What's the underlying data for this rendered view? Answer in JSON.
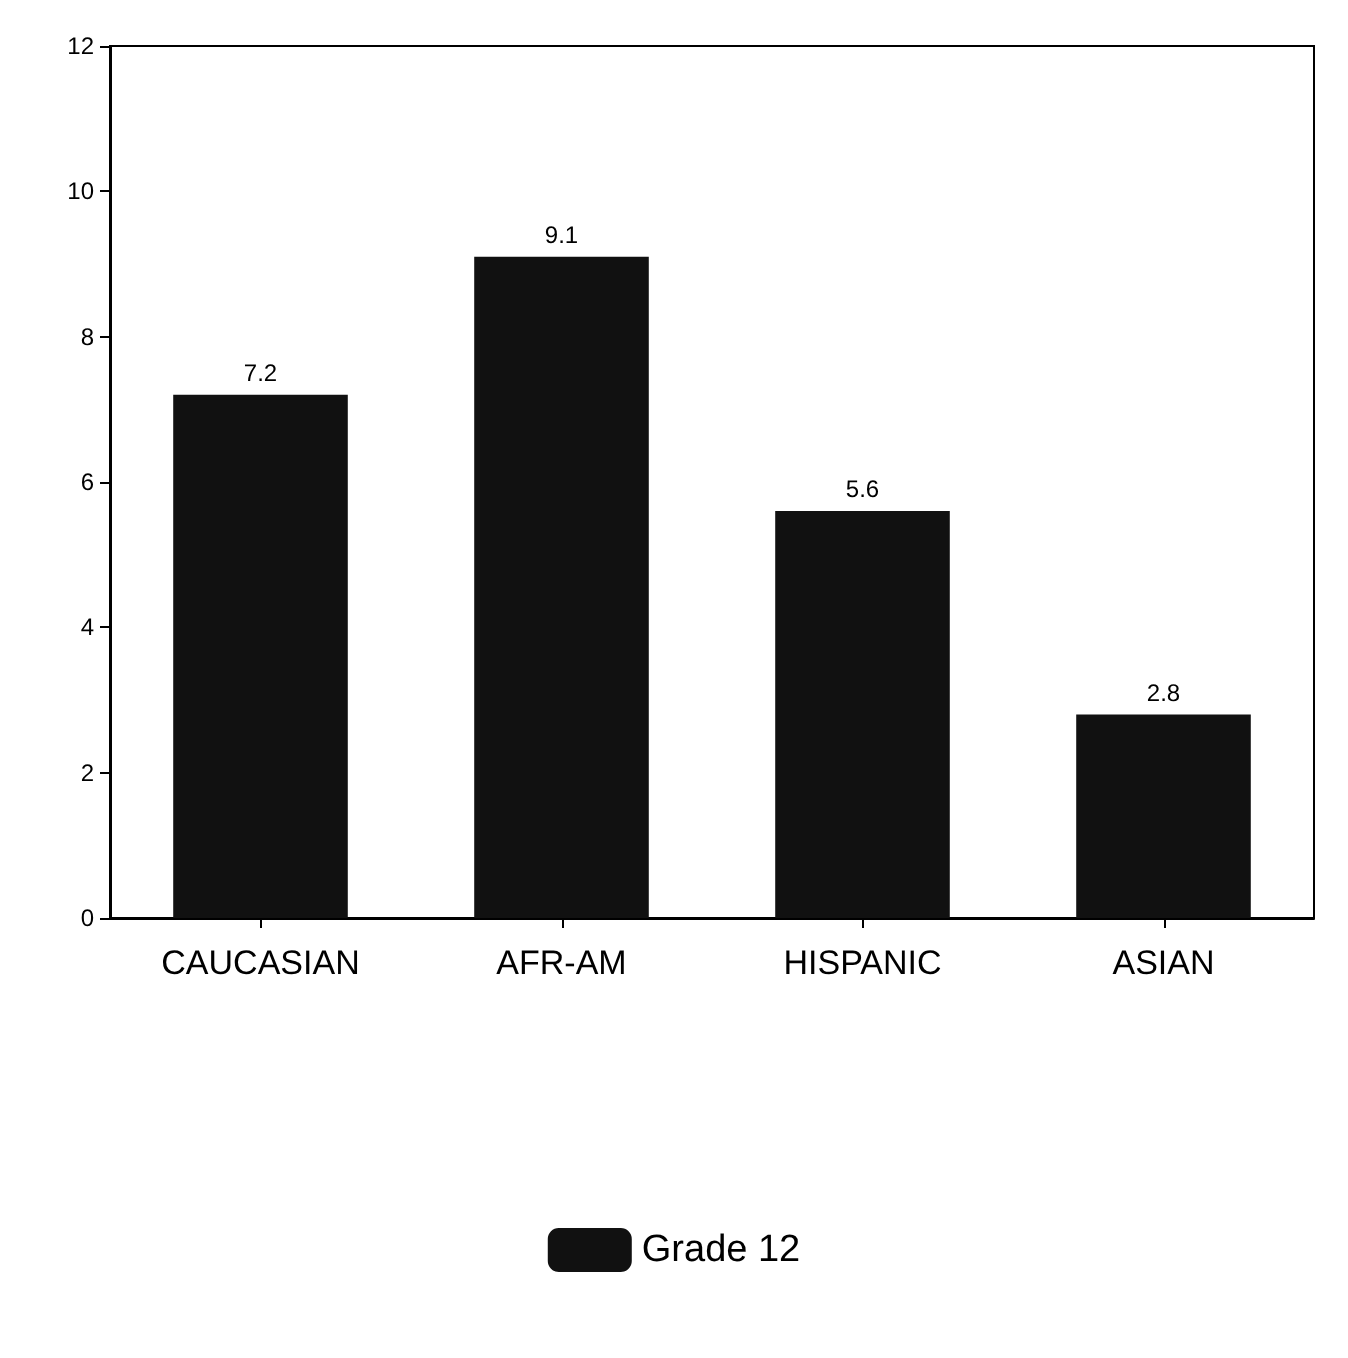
{
  "chart_data": {
    "type": "bar",
    "categories": [
      "CAUCASIAN",
      "AFR-AM",
      "HISPANIC",
      "ASIAN"
    ],
    "series": [
      {
        "name": "Grade 12",
        "color": "#111111",
        "values": [
          7.2,
          9.1,
          5.6,
          2.8
        ]
      }
    ],
    "ylim": [
      0,
      12
    ],
    "yticks": [
      0,
      2,
      4,
      6,
      8,
      10,
      12
    ],
    "data_labels": true,
    "grid": false,
    "legend": "bottom"
  }
}
